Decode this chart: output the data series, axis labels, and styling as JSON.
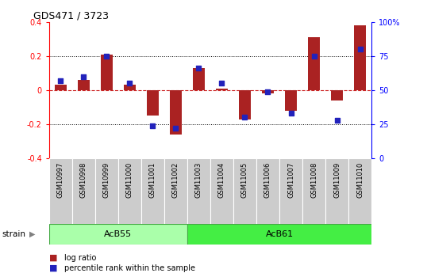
{
  "title": "GDS471 / 3723",
  "samples": [
    "GSM10997",
    "GSM10998",
    "GSM10999",
    "GSM11000",
    "GSM11001",
    "GSM11002",
    "GSM11003",
    "GSM11004",
    "GSM11005",
    "GSM11006",
    "GSM11007",
    "GSM11008",
    "GSM11009",
    "GSM11010"
  ],
  "log_ratio": [
    0.03,
    0.06,
    0.21,
    0.03,
    -0.15,
    -0.26,
    0.13,
    0.01,
    -0.17,
    -0.02,
    -0.12,
    0.31,
    -0.06,
    0.38
  ],
  "percentile_rank": [
    57,
    60,
    75,
    55,
    24,
    22,
    66,
    55,
    30,
    49,
    33,
    75,
    28,
    80
  ],
  "ylim": [
    -0.4,
    0.4
  ],
  "yticks_left": [
    -0.4,
    -0.2,
    0.0,
    0.2,
    0.4
  ],
  "yticks_right": [
    0,
    25,
    50,
    75,
    100
  ],
  "y_right_labels": [
    "0",
    "25",
    "50",
    "75",
    "100%"
  ],
  "hline_y": [
    0.2,
    -0.2
  ],
  "bar_color": "#AA2222",
  "dot_color": "#2222BB",
  "zero_line_color": "#CC2222",
  "grid_color": "#000000",
  "bg_color": "#FFFFFF",
  "plot_bg": "#FFFFFF",
  "bar_width": 0.5,
  "dot_size": 22,
  "strain_label": "strain",
  "legend_items": [
    "log ratio",
    "percentile rank within the sample"
  ],
  "acb55_color": "#AAFFAA",
  "acb61_color": "#44EE44",
  "tick_bg": "#CCCCCC",
  "acb55_n": 6,
  "acb61_n": 8
}
